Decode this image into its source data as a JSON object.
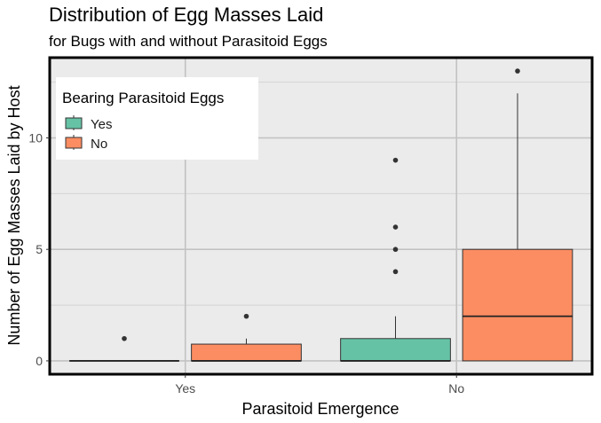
{
  "chart_data": {
    "type": "box",
    "title": "Distribution of Egg Masses Laid",
    "subtitle": "for Bugs with and without Parasitoid Eggs",
    "xlabel": "Parasitoid Emergence",
    "ylabel": "Number of Egg Masses Laid by Host",
    "categories": [
      "Yes",
      "No"
    ],
    "ylim": [
      -0.6,
      13.6
    ],
    "y_ticks": [
      0,
      5,
      10
    ],
    "grid": true,
    "legend": {
      "title": "Bearing Parasitoid Eggs",
      "position": "top-left",
      "entries": [
        "Yes",
        "No"
      ]
    },
    "series": [
      {
        "name": "Yes",
        "color": "#66c2a5",
        "boxes": [
          {
            "category": "Yes",
            "whisker_low": 0,
            "q1": 0,
            "median": 0,
            "q3": 0,
            "whisker_high": 0,
            "outliers": [
              1
            ]
          },
          {
            "category": "No",
            "whisker_low": 0,
            "q1": 0,
            "median": 0,
            "q3": 1,
            "whisker_high": 2,
            "outliers": [
              4,
              5,
              6,
              9
            ]
          }
        ]
      },
      {
        "name": "No",
        "color": "#fc8d62",
        "boxes": [
          {
            "category": "Yes",
            "whisker_low": 0,
            "q1": 0,
            "median": 0,
            "q3": 0.75,
            "whisker_high": 1,
            "outliers": [
              2
            ]
          },
          {
            "category": "No",
            "whisker_low": 0,
            "q1": 0,
            "median": 2,
            "q3": 5,
            "whisker_high": 12,
            "outliers": [
              13
            ]
          }
        ]
      }
    ]
  }
}
